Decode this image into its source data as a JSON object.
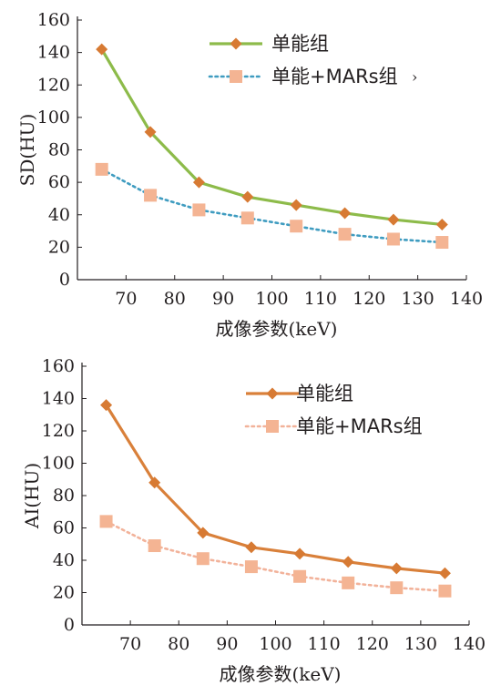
{
  "chart_data": [
    {
      "type": "line",
      "xlabel": "成像参数(keV)",
      "ylabel": "SD(HU)",
      "xlim": [
        60,
        140
      ],
      "ylim": [
        0,
        160
      ],
      "x_ticks": [
        "70",
        "80",
        "90",
        "100",
        "110",
        "120",
        "130",
        "140"
      ],
      "y_ticks": [
        "0",
        "20",
        "40",
        "60",
        "80",
        "100",
        "120",
        "140",
        "160"
      ],
      "x": [
        65,
        75,
        85,
        95,
        105,
        115,
        125,
        135
      ],
      "legend_position": "top-right",
      "series": [
        {
          "name": "单能组",
          "values": [
            142,
            91,
            60,
            51,
            46,
            41,
            37,
            34
          ],
          "color": "#8dbb4a",
          "marker_color": "#d77a33",
          "marker": "diamond",
          "line": "solid"
        },
        {
          "name": "单能+MARs组",
          "values": [
            68,
            52,
            43,
            38,
            33,
            28,
            25,
            23
          ],
          "color": "#3f9cc0",
          "marker_color": "#f4b493",
          "marker": "square",
          "line": "dotted"
        }
      ]
    },
    {
      "type": "line",
      "xlabel": "成像参数(keV)",
      "ylabel": "AI(HU)",
      "xlim": [
        60,
        140
      ],
      "ylim": [
        0,
        160
      ],
      "x_ticks": [
        "70",
        "80",
        "90",
        "100",
        "110",
        "120",
        "130",
        "140"
      ],
      "y_ticks": [
        "0",
        "20",
        "40",
        "60",
        "80",
        "100",
        "120",
        "140",
        "160"
      ],
      "x": [
        65,
        75,
        85,
        95,
        105,
        115,
        125,
        135
      ],
      "legend_position": "top-right",
      "series": [
        {
          "name": "单能组",
          "values": [
            136,
            88,
            57,
            48,
            44,
            39,
            35,
            32
          ],
          "color": "#d9803a",
          "marker_color": "#d77a33",
          "marker": "diamond",
          "line": "solid"
        },
        {
          "name": "单能+MARs组",
          "values": [
            64,
            49,
            41,
            36,
            30,
            26,
            23,
            21
          ],
          "color": "#f2b29a",
          "marker_color": "#f4b493",
          "marker": "square",
          "line": "dotted"
        }
      ]
    }
  ]
}
